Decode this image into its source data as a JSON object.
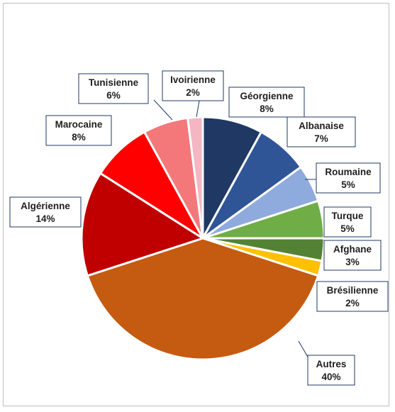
{
  "chart_data": {
    "type": "pie",
    "title": "",
    "start_angle_deg": 0,
    "direction": "clockwise",
    "slices": [
      {
        "label": "Géorgienne",
        "value": 8,
        "value_label": "8%",
        "color": "#1f3864"
      },
      {
        "label": "Albanaise",
        "value": 7,
        "value_label": "7%",
        "color": "#2f5597"
      },
      {
        "label": "Roumaine",
        "value": 5,
        "value_label": "5%",
        "color": "#8faadc"
      },
      {
        "label": "Turque",
        "value": 5,
        "value_label": "5%",
        "color": "#70ad47"
      },
      {
        "label": "Afghane",
        "value": 3,
        "value_label": "3%",
        "color": "#548235"
      },
      {
        "label": "Brésilienne",
        "value": 2,
        "value_label": "2%",
        "color": "#ffc000"
      },
      {
        "label": "Autres",
        "value": 40,
        "value_label": "40%",
        "color": "#c55a11"
      },
      {
        "label": "Algérienne",
        "value": 14,
        "value_label": "14%",
        "color": "#c00000"
      },
      {
        "label": "Marocaine",
        "value": 8,
        "value_label": "8%",
        "color": "#ff0000"
      },
      {
        "label": "Tunisienne",
        "value": 6,
        "value_label": "6%",
        "color": "#f4777a"
      },
      {
        "label": "Ivoirienne",
        "value": 2,
        "value_label": "2%",
        "color": "#f4b6c2"
      }
    ],
    "label_border_color": "#1f3864"
  }
}
